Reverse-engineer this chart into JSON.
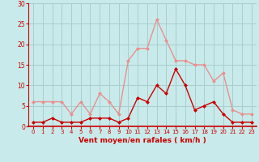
{
  "hours": [
    0,
    1,
    2,
    3,
    4,
    5,
    6,
    7,
    8,
    9,
    10,
    11,
    12,
    13,
    14,
    15,
    16,
    17,
    18,
    19,
    20,
    21,
    22,
    23
  ],
  "avg_wind": [
    1,
    1,
    2,
    1,
    1,
    1,
    2,
    2,
    2,
    1,
    2,
    7,
    6,
    10,
    8,
    14,
    10,
    4,
    5,
    6,
    3,
    1,
    1,
    1
  ],
  "gust_wind": [
    6,
    6,
    6,
    6,
    3,
    6,
    3,
    8,
    6,
    3,
    16,
    19,
    19,
    26,
    21,
    16,
    16,
    15,
    15,
    11,
    13,
    4,
    3,
    3
  ],
  "avg_color": "#cc0000",
  "gust_color": "#e89090",
  "bg_color": "#c8eaea",
  "grid_color": "#a8cece",
  "xlabel": "Vent moyen/en rafales ( km/h )",
  "xlabel_color": "#cc0000",
  "tick_color": "#cc0000",
  "ylim": [
    0,
    30
  ],
  "yticks": [
    0,
    5,
    10,
    15,
    20,
    25,
    30
  ],
  "marker": "D",
  "markersize": 2.5,
  "linewidth": 1.0
}
